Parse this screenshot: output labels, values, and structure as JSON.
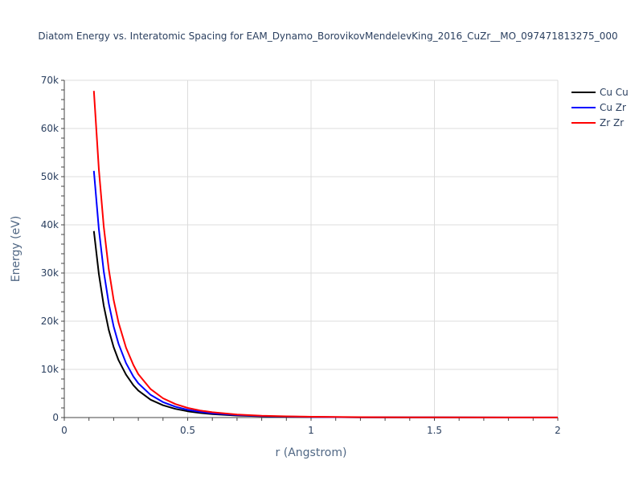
{
  "chart_data": {
    "type": "line",
    "title": "Diatom Energy vs. Interatomic Spacing for EAM_Dynamo_BorovikovMendelevKing_2016_CuZr__MO_097471813275_000",
    "xlabel": "r (Angstrom)",
    "ylabel": "Energy (eV)",
    "xlim": [
      0,
      2
    ],
    "ylim": [
      0,
      70000
    ],
    "x_ticks": [
      0,
      0.5,
      1,
      1.5,
      2
    ],
    "x_tick_labels": [
      "0",
      "0.5",
      "1",
      "1.5",
      "2"
    ],
    "y_ticks": [
      0,
      10000,
      20000,
      30000,
      40000,
      50000,
      60000,
      70000
    ],
    "y_tick_labels": [
      "0",
      "10k",
      "20k",
      "30k",
      "40k",
      "50k",
      "60k",
      "70k"
    ],
    "grid": true,
    "legend_position": "top-right",
    "series": [
      {
        "name": "Cu Cu",
        "color": "#000000",
        "x": [
          0.12,
          0.14,
          0.16,
          0.18,
          0.2,
          0.22,
          0.25,
          0.28,
          0.3,
          0.35,
          0.4,
          0.45,
          0.5,
          0.55,
          0.6,
          0.7,
          0.8,
          0.9,
          1.0,
          1.2,
          1.5,
          2.0
        ],
        "y": [
          38700,
          29800,
          23200,
          18200,
          14600,
          11900,
          8900,
          6700,
          5600,
          3700,
          2550,
          1800,
          1300,
          950,
          720,
          420,
          260,
          165,
          110,
          55,
          22,
          8
        ]
      },
      {
        "name": "Cu Zr",
        "color": "#0000ff",
        "x": [
          0.12,
          0.14,
          0.16,
          0.18,
          0.2,
          0.22,
          0.25,
          0.28,
          0.3,
          0.35,
          0.4,
          0.45,
          0.5,
          0.55,
          0.6,
          0.7,
          0.8,
          0.9,
          1.0,
          1.2,
          1.5,
          2.0
        ],
        "y": [
          51200,
          39100,
          30300,
          23700,
          18900,
          15300,
          11300,
          8500,
          7100,
          4700,
          3200,
          2250,
          1600,
          1180,
          880,
          510,
          310,
          200,
          130,
          65,
          26,
          9
        ]
      },
      {
        "name": "Zr Zr",
        "color": "#ff0000",
        "x": [
          0.12,
          0.14,
          0.16,
          0.18,
          0.2,
          0.22,
          0.25,
          0.28,
          0.3,
          0.35,
          0.4,
          0.45,
          0.5,
          0.55,
          0.6,
          0.7,
          0.8,
          0.9,
          1.0,
          1.2,
          1.5,
          2.0
        ],
        "y": [
          67800,
          51500,
          39600,
          30800,
          24400,
          19700,
          14500,
          10900,
          9000,
          5900,
          4000,
          2800,
          2000,
          1470,
          1100,
          630,
          380,
          245,
          160,
          80,
          32,
          11
        ]
      }
    ]
  }
}
